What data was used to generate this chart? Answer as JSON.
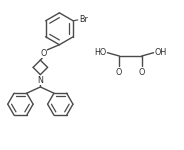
{
  "bg_color": "#ffffff",
  "line_color": "#4a4a4a",
  "text_color": "#2a2a2a",
  "line_width": 1.0,
  "font_size": 5.8,
  "xlim": [
    0,
    10
  ],
  "ylim": [
    0,
    8.2
  ]
}
